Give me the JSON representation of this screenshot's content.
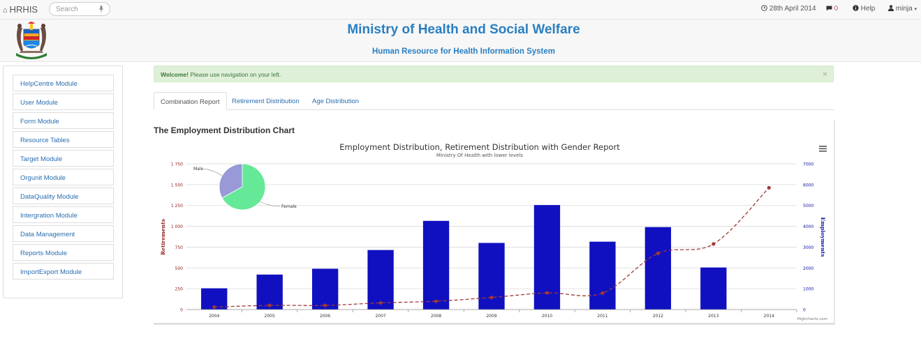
{
  "navbar": {
    "brand": "HRHIS",
    "search_placeholder": "Search",
    "date": "28th April 2014",
    "message_count": "0",
    "help": "Help",
    "user": "minja"
  },
  "header": {
    "title": "Ministry of Health and Social Welfare",
    "subtitle": "Human Resource for Health Information System"
  },
  "sidebar": {
    "items": [
      {
        "label": "HelpCentre Module"
      },
      {
        "label": "User Module"
      },
      {
        "label": "Form Module"
      },
      {
        "label": "Resource Tables"
      },
      {
        "label": "Target Module"
      },
      {
        "label": "Orgunit Module"
      },
      {
        "label": "DataQuality Module"
      },
      {
        "label": "Intergration Module"
      },
      {
        "label": "Data Management"
      },
      {
        "label": "Reports Module"
      },
      {
        "label": "ImportExport Module"
      }
    ]
  },
  "alert": {
    "strong": "Welcome!",
    "text": " Please use navigation on your left.",
    "close": "×"
  },
  "tabs": [
    {
      "label": "Combination Report",
      "active": true
    },
    {
      "label": "Retirement Distribution",
      "active": false
    },
    {
      "label": "Age Distribution",
      "active": false
    }
  ],
  "section_title": "The Employment Distribution Chart",
  "colors": {
    "bar": "#1010c0",
    "line": "#a03838",
    "pie_male": "#9999d8",
    "pie_female": "#66e899",
    "accent": "#2a7fc0"
  },
  "chart_data": {
    "type": "combination",
    "title": "Employment Distribution, Retirement Distribution with Gender Report",
    "subtitle": "Ministry Of Health with lower levels",
    "categories": [
      "2004",
      "2005",
      "2006",
      "2007",
      "2008",
      "2009",
      "2010",
      "2011",
      "2012",
      "2013",
      "2014"
    ],
    "y_left": {
      "label": "Retirements",
      "ticks": [
        "0",
        "250",
        "500",
        "750",
        "1 000",
        "1 250",
        "1 500",
        "1 750"
      ],
      "range": [
        0,
        1750
      ]
    },
    "y_right": {
      "label": "Employments",
      "ticks": [
        "0",
        "1000",
        "2000",
        "3000",
        "4000",
        "5000",
        "6000",
        "7000"
      ],
      "range": [
        0,
        7000
      ]
    },
    "series": [
      {
        "type": "column",
        "axis": "left",
        "values": [
          255,
          420,
          490,
          715,
          1065,
          800,
          1255,
          815,
          990,
          505,
          null
        ]
      },
      {
        "type": "spline",
        "axis": "right",
        "values": [
          120,
          200,
          200,
          320,
          400,
          580,
          800,
          790,
          2700,
          3150,
          5850
        ]
      }
    ],
    "pie": {
      "slices": [
        {
          "name": "Male",
          "value": 33
        },
        {
          "name": "Female",
          "value": 67
        }
      ]
    },
    "credits": "Highcharts.com"
  }
}
